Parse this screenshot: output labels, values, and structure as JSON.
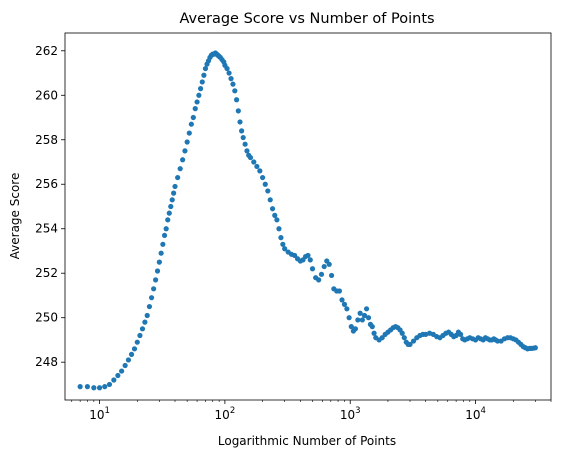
{
  "chart_data": {
    "type": "scatter",
    "title": "Average Score vs Number of Points",
    "xlabel": "Logarithmic Number of Points",
    "ylabel": "Average Score",
    "xscale": "log",
    "xlim": [
      5.3,
      40000
    ],
    "ylim": [
      246.3,
      262.8
    ],
    "grid": false,
    "marker_color": "#1f77b4",
    "y_ticks": [
      248,
      250,
      252,
      254,
      256,
      258,
      260,
      262
    ],
    "x_ticks": [
      {
        "value": 10,
        "base": "10",
        "exp": "1"
      },
      {
        "value": 100,
        "base": "10",
        "exp": "2"
      },
      {
        "value": 1000,
        "base": "10",
        "exp": "3"
      },
      {
        "value": 10000,
        "base": "10",
        "exp": "4"
      }
    ],
    "series": [
      {
        "points": [
          [
            7,
            246.9
          ],
          [
            8,
            246.9
          ],
          [
            9,
            246.85
          ],
          [
            10,
            246.85
          ],
          [
            11,
            246.9
          ],
          [
            12,
            247.0
          ],
          [
            13,
            247.2
          ],
          [
            14,
            247.4
          ],
          [
            15,
            247.6
          ],
          [
            16,
            247.85
          ],
          [
            17,
            248.1
          ],
          [
            18,
            248.35
          ],
          [
            19,
            248.6
          ],
          [
            20,
            248.9
          ],
          [
            21,
            249.2
          ],
          [
            22,
            249.5
          ],
          [
            23,
            249.8
          ],
          [
            24,
            250.1
          ],
          [
            25,
            250.5
          ],
          [
            26,
            250.9
          ],
          [
            27,
            251.3
          ],
          [
            28,
            251.7
          ],
          [
            29,
            252.1
          ],
          [
            30,
            252.5
          ],
          [
            31,
            252.9
          ],
          [
            32,
            253.3
          ],
          [
            33,
            253.7
          ],
          [
            34,
            254.0
          ],
          [
            35,
            254.4
          ],
          [
            36,
            254.7
          ],
          [
            37,
            255.0
          ],
          [
            38,
            255.3
          ],
          [
            39,
            255.6
          ],
          [
            40,
            255.9
          ],
          [
            42,
            256.3
          ],
          [
            44,
            256.7
          ],
          [
            46,
            257.1
          ],
          [
            48,
            257.5
          ],
          [
            50,
            257.9
          ],
          [
            52,
            258.3
          ],
          [
            54,
            258.7
          ],
          [
            56,
            259.0
          ],
          [
            58,
            259.4
          ],
          [
            60,
            259.7
          ],
          [
            62,
            260.0
          ],
          [
            64,
            260.3
          ],
          [
            66,
            260.6
          ],
          [
            68,
            260.9
          ],
          [
            70,
            261.2
          ],
          [
            72,
            261.4
          ],
          [
            74,
            261.55
          ],
          [
            76,
            261.7
          ],
          [
            78,
            261.8
          ],
          [
            80,
            261.85
          ],
          [
            82,
            261.85
          ],
          [
            84,
            261.9
          ],
          [
            86,
            261.85
          ],
          [
            88,
            261.8
          ],
          [
            90,
            261.75
          ],
          [
            92,
            261.7
          ],
          [
            95,
            261.6
          ],
          [
            98,
            261.5
          ],
          [
            100,
            261.35
          ],
          [
            104,
            261.2
          ],
          [
            108,
            261.0
          ],
          [
            112,
            260.75
          ],
          [
            116,
            260.5
          ],
          [
            120,
            260.2
          ],
          [
            124,
            259.8
          ],
          [
            128,
            259.3
          ],
          [
            132,
            258.8
          ],
          [
            136,
            258.4
          ],
          [
            140,
            258.1
          ],
          [
            145,
            257.8
          ],
          [
            150,
            257.5
          ],
          [
            155,
            257.3
          ],
          [
            160,
            257.2
          ],
          [
            170,
            257.0
          ],
          [
            180,
            256.8
          ],
          [
            190,
            256.6
          ],
          [
            200,
            256.3
          ],
          [
            210,
            256.0
          ],
          [
            220,
            255.7
          ],
          [
            230,
            255.3
          ],
          [
            240,
            254.9
          ],
          [
            250,
            254.6
          ],
          [
            260,
            254.4
          ],
          [
            270,
            254.0
          ],
          [
            280,
            253.6
          ],
          [
            290,
            253.3
          ],
          [
            300,
            253.1
          ],
          [
            320,
            252.95
          ],
          [
            340,
            252.85
          ],
          [
            360,
            252.8
          ],
          [
            380,
            252.65
          ],
          [
            400,
            252.55
          ],
          [
            420,
            252.6
          ],
          [
            440,
            252.75
          ],
          [
            460,
            252.8
          ],
          [
            480,
            252.6
          ],
          [
            500,
            252.2
          ],
          [
            530,
            251.8
          ],
          [
            560,
            251.7
          ],
          [
            590,
            251.95
          ],
          [
            620,
            252.3
          ],
          [
            650,
            252.55
          ],
          [
            680,
            252.4
          ],
          [
            710,
            251.9
          ],
          [
            740,
            251.3
          ],
          [
            780,
            251.2
          ],
          [
            820,
            251.2
          ],
          [
            860,
            250.8
          ],
          [
            900,
            250.6
          ],
          [
            940,
            250.4
          ],
          [
            980,
            250.0
          ],
          [
            1020,
            249.6
          ],
          [
            1060,
            249.4
          ],
          [
            1100,
            249.5
          ],
          [
            1150,
            249.9
          ],
          [
            1200,
            250.2
          ],
          [
            1250,
            249.9
          ],
          [
            1300,
            250.1
          ],
          [
            1350,
            250.4
          ],
          [
            1400,
            250.0
          ],
          [
            1450,
            249.7
          ],
          [
            1500,
            249.6
          ],
          [
            1550,
            249.3
          ],
          [
            1600,
            249.1
          ],
          [
            1700,
            249.0
          ],
          [
            1800,
            249.1
          ],
          [
            1900,
            249.25
          ],
          [
            2000,
            249.35
          ],
          [
            2100,
            249.45
          ],
          [
            2200,
            249.55
          ],
          [
            2300,
            249.6
          ],
          [
            2400,
            249.55
          ],
          [
            2500,
            249.45
          ],
          [
            2600,
            249.3
          ],
          [
            2700,
            249.1
          ],
          [
            2800,
            248.9
          ],
          [
            2900,
            248.8
          ],
          [
            3000,
            248.8
          ],
          [
            3200,
            248.95
          ],
          [
            3400,
            249.1
          ],
          [
            3600,
            249.2
          ],
          [
            3800,
            249.25
          ],
          [
            4000,
            249.25
          ],
          [
            4300,
            249.3
          ],
          [
            4600,
            249.25
          ],
          [
            4900,
            249.15
          ],
          [
            5200,
            249.1
          ],
          [
            5500,
            249.2
          ],
          [
            5800,
            249.3
          ],
          [
            6100,
            249.35
          ],
          [
            6400,
            249.25
          ],
          [
            6700,
            249.15
          ],
          [
            7000,
            249.2
          ],
          [
            7300,
            249.35
          ],
          [
            7600,
            249.25
          ],
          [
            7900,
            249.05
          ],
          [
            8200,
            249.0
          ],
          [
            8600,
            249.05
          ],
          [
            9000,
            249.1
          ],
          [
            9500,
            249.05
          ],
          [
            10000,
            249.0
          ],
          [
            10500,
            249.1
          ],
          [
            11000,
            249.05
          ],
          [
            11500,
            249.0
          ],
          [
            12000,
            249.1
          ],
          [
            12500,
            249.05
          ],
          [
            13000,
            249.0
          ],
          [
            13500,
            249.0
          ],
          [
            14000,
            249.05
          ],
          [
            14500,
            249.0
          ],
          [
            15000,
            248.95
          ],
          [
            16000,
            248.95
          ],
          [
            17000,
            249.05
          ],
          [
            18000,
            249.1
          ],
          [
            19000,
            249.1
          ],
          [
            20000,
            249.05
          ],
          [
            21000,
            249.0
          ],
          [
            22000,
            248.9
          ],
          [
            23000,
            248.8
          ],
          [
            24000,
            248.7
          ],
          [
            25000,
            248.65
          ],
          [
            26000,
            248.6
          ],
          [
            27000,
            248.62
          ],
          [
            28000,
            248.62
          ],
          [
            29000,
            248.63
          ],
          [
            30000,
            248.65
          ]
        ]
      }
    ]
  }
}
